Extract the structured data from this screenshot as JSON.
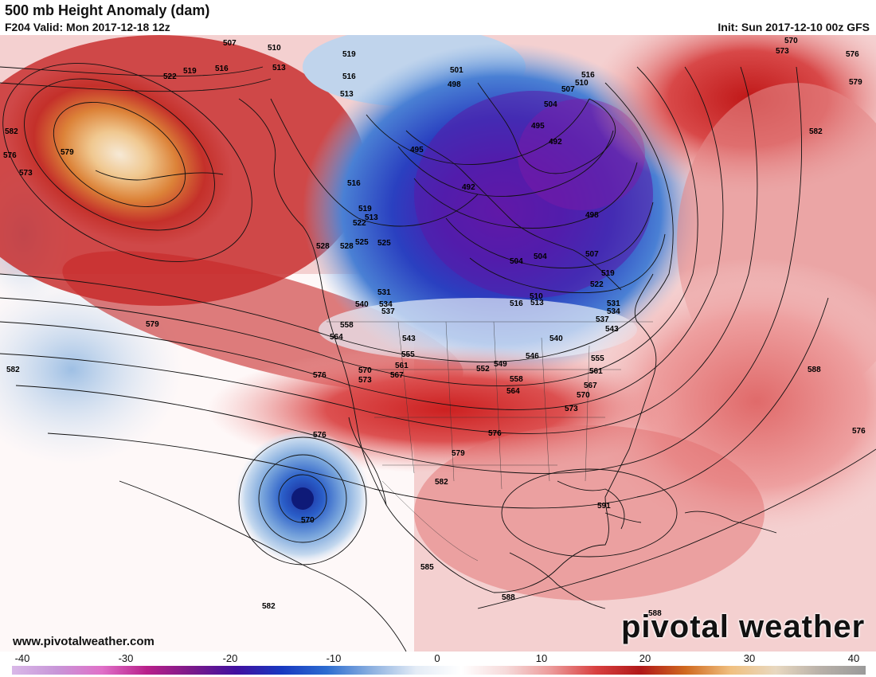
{
  "header": {
    "title": "500 mb Height Anomaly (dam)",
    "valid": "F204 Valid: Mon 2017-12-18 12z",
    "init": "Init: Sun 2017-12-10 00z GFS"
  },
  "footer": {
    "website": "www.pivotalweather.com",
    "logo": "pivotal weather"
  },
  "colorbar": {
    "labels": [
      "-40",
      "-30",
      "-20",
      "-10",
      "0",
      "10",
      "20",
      "30",
      "40"
    ],
    "stops": [
      "#d9b8e8",
      "#c896d8",
      "#e070c8",
      "#b8208a",
      "#7a1a8a",
      "#4010a0",
      "#1838c0",
      "#2c6cd0",
      "#8cb0e0",
      "#e4ecf6",
      "#ffffff",
      "#f6dada",
      "#ec9a9a",
      "#d84040",
      "#b01818",
      "#d06a20",
      "#f0c080",
      "#e8d8c0",
      "#b8b0a8",
      "#9a9a9a"
    ]
  },
  "contour_labels": [
    {
      "text": "507"
    },
    {
      "text": "510"
    },
    {
      "text": "519"
    },
    {
      "text": "522"
    },
    {
      "text": "519"
    },
    {
      "text": "516"
    },
    {
      "text": "513"
    },
    {
      "text": "516"
    },
    {
      "text": "513"
    },
    {
      "text": "501"
    },
    {
      "text": "498"
    },
    {
      "text": "495"
    },
    {
      "text": "492"
    },
    {
      "text": "504"
    },
    {
      "text": "495"
    },
    {
      "text": "492"
    },
    {
      "text": "498"
    },
    {
      "text": "504"
    },
    {
      "text": "507"
    },
    {
      "text": "510"
    },
    {
      "text": "516"
    },
    {
      "text": "507"
    },
    {
      "text": "504"
    },
    {
      "text": "510"
    },
    {
      "text": "513"
    },
    {
      "text": "516"
    },
    {
      "text": "519"
    },
    {
      "text": "522"
    },
    {
      "text": "531"
    },
    {
      "text": "534"
    },
    {
      "text": "537"
    },
    {
      "text": "543"
    },
    {
      "text": "540"
    },
    {
      "text": "546"
    },
    {
      "text": "549"
    },
    {
      "text": "552"
    },
    {
      "text": "555"
    },
    {
      "text": "561"
    },
    {
      "text": "558"
    },
    {
      "text": "564"
    },
    {
      "text": "567"
    },
    {
      "text": "570"
    },
    {
      "text": "573"
    },
    {
      "text": "576"
    },
    {
      "text": "579"
    },
    {
      "text": "582"
    },
    {
      "text": "585"
    },
    {
      "text": "588"
    },
    {
      "text": "591"
    },
    {
      "text": "570"
    },
    {
      "text": "573"
    },
    {
      "text": "576"
    },
    {
      "text": "579"
    },
    {
      "text": "582"
    },
    {
      "text": "588"
    },
    {
      "text": "516"
    },
    {
      "text": "519"
    },
    {
      "text": "522"
    },
    {
      "text": "525"
    },
    {
      "text": "528"
    },
    {
      "text": "531"
    },
    {
      "text": "534"
    },
    {
      "text": "537"
    },
    {
      "text": "540"
    },
    {
      "text": "543"
    },
    {
      "text": "555"
    },
    {
      "text": "558"
    },
    {
      "text": "561"
    },
    {
      "text": "564"
    },
    {
      "text": "567"
    },
    {
      "text": "570"
    },
    {
      "text": "573"
    },
    {
      "text": "576"
    },
    {
      "text": "579"
    },
    {
      "text": "582"
    },
    {
      "text": "576"
    },
    {
      "text": "573"
    },
    {
      "text": "570"
    },
    {
      "text": "576"
    },
    {
      "text": "579"
    },
    {
      "text": "582"
    },
    {
      "text": "582"
    },
    {
      "text": "576"
    },
    {
      "text": "570"
    },
    {
      "text": "588"
    },
    {
      "text": "588"
    },
    {
      "text": "525"
    },
    {
      "text": "528"
    },
    {
      "text": "513"
    },
    {
      "text": "510"
    }
  ]
}
